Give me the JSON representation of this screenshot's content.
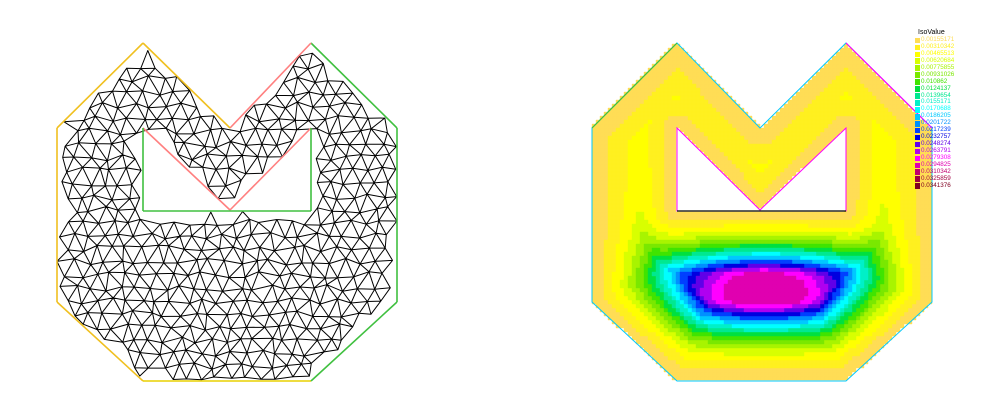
{
  "legend": {
    "title": "IsoValue",
    "entries": [
      {
        "label": "0.00155171",
        "color": "#ffdd55"
      },
      {
        "label": "0.00310342",
        "color": "#fff020"
      },
      {
        "label": "0.00465513",
        "color": "#ffff00"
      },
      {
        "label": "0.00620684",
        "color": "#d8ff00"
      },
      {
        "label": "0.00775855",
        "color": "#a8f400"
      },
      {
        "label": "0.00931026",
        "color": "#7ae800"
      },
      {
        "label": "0.010862",
        "color": "#40e400"
      },
      {
        "label": "0.0124137",
        "color": "#00e040"
      },
      {
        "label": "0.0139654",
        "color": "#00e890"
      },
      {
        "label": "0.0155171",
        "color": "#00f0c8"
      },
      {
        "label": "0.0170688",
        "color": "#00ffff"
      },
      {
        "label": "0.0186205",
        "color": "#00c8ff"
      },
      {
        "label": "0.0201722",
        "color": "#0090ff"
      },
      {
        "label": "0.0217239",
        "color": "#0040ff"
      },
      {
        "label": "0.0232757",
        "color": "#0000e0"
      },
      {
        "label": "0.0248274",
        "color": "#6000e8"
      },
      {
        "label": "0.0263791",
        "color": "#b000f0"
      },
      {
        "label": "0.0279308",
        "color": "#ff00ff"
      },
      {
        "label": "0.0294825",
        "color": "#e000b0"
      },
      {
        "label": "0.0310342",
        "color": "#c00070"
      },
      {
        "label": "0.0325859",
        "color": "#a00040"
      },
      {
        "label": "0.0341376",
        "color": "#800020"
      }
    ]
  },
  "boundary_colors": {
    "left_top": "#f0c020",
    "left_side": "#f0c020",
    "bottom": "#e8d000",
    "right_side": "#40c040",
    "right_top": "#40c040",
    "notch": "#ff8080",
    "hole": "#40c040"
  }
}
